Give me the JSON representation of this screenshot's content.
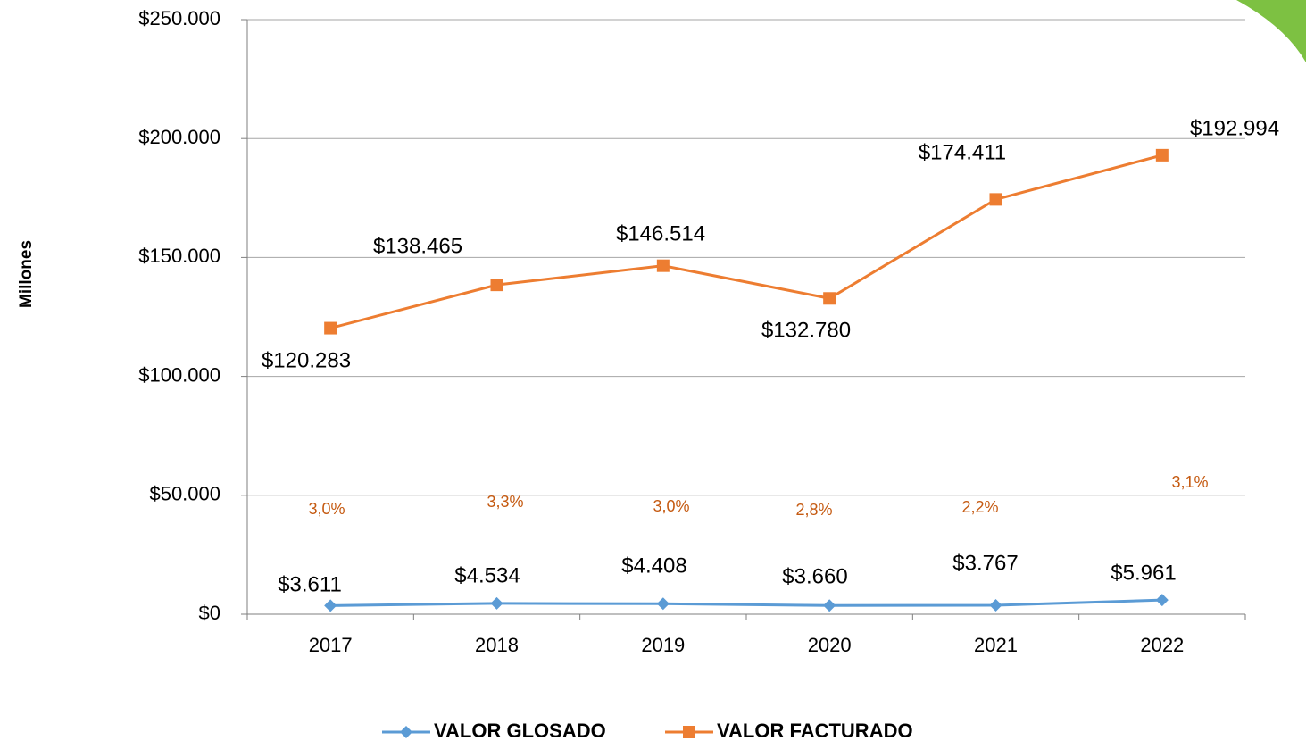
{
  "chart_data": {
    "type": "line",
    "y_label": "Millones",
    "categories": [
      "2017",
      "2018",
      "2019",
      "2020",
      "2021",
      "2022"
    ],
    "series": [
      {
        "name": "VALOR GLOSADO",
        "color": "#5b9bd5",
        "marker": "diamond",
        "values": [
          3611,
          4534,
          4408,
          3660,
          3767,
          5961
        ],
        "value_labels": [
          "$3.611",
          "$4.534",
          "$4.408",
          "$3.660",
          "$3.767",
          "$5.961"
        ]
      },
      {
        "name": "VALOR FACTURADO",
        "color": "#ed7d31",
        "marker": "square",
        "values": [
          120283,
          138465,
          146514,
          132780,
          174411,
          192994
        ],
        "value_labels": [
          "$120.283",
          "$138.465",
          "$146.514",
          "$132.780",
          "$174.411",
          "$192.994"
        ]
      }
    ],
    "annotations": [
      "3,0%",
      "3,3%",
      "3,0%",
      "2,8%",
      "2,2%",
      "3,1%"
    ],
    "annotation_color": "#c55a11",
    "ylim": [
      0,
      250000
    ],
    "yticks": [
      {
        "value": 0,
        "label": "$0"
      },
      {
        "value": 50000,
        "label": "$50.000"
      },
      {
        "value": 100000,
        "label": "$100.000"
      },
      {
        "value": 150000,
        "label": "$150.000"
      },
      {
        "value": 200000,
        "label": "$200.000"
      },
      {
        "value": 250000,
        "label": "$250.000"
      }
    ],
    "grid": true,
    "legend": "bottom"
  }
}
